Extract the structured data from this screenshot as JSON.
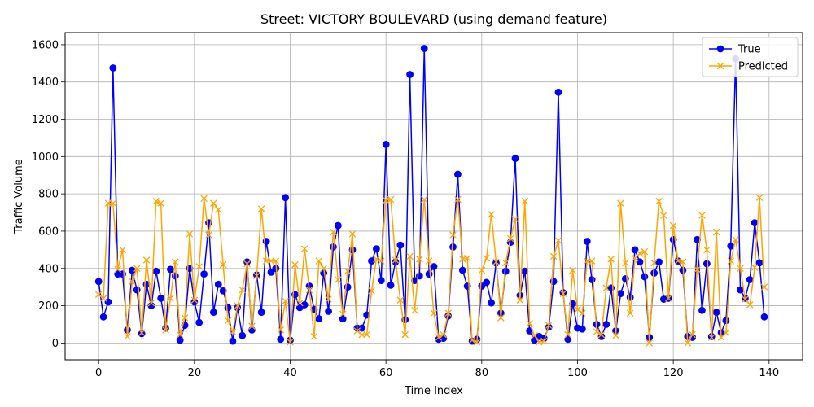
{
  "chart_data": {
    "type": "line",
    "title": "Street: VICTORY BOULEVARD (using demand feature)",
    "xlabel": "Time Index",
    "ylabel": "Traffic Volume",
    "xlim": [
      -7,
      147
    ],
    "ylim": [
      -90,
      1665
    ],
    "xticks": [
      0,
      20,
      40,
      60,
      80,
      100,
      120,
      140
    ],
    "yticks": [
      0,
      200,
      400,
      600,
      800,
      1000,
      1200,
      1400,
      1600
    ],
    "grid": true,
    "legend_position": "top-right",
    "series": [
      {
        "name": "True",
        "color": "#0000ff",
        "marker": "circle",
        "values": [
          330,
          140,
          220,
          1475,
          370,
          370,
          70,
          390,
          285,
          50,
          315,
          200,
          385,
          240,
          80,
          395,
          360,
          15,
          95,
          400,
          220,
          110,
          370,
          645,
          165,
          315,
          280,
          190,
          10,
          190,
          40,
          435,
          70,
          365,
          165,
          545,
          380,
          400,
          20,
          780,
          15,
          260,
          190,
          205,
          305,
          180,
          130,
          375,
          170,
          515,
          630,
          130,
          300,
          500,
          80,
          80,
          150,
          440,
          505,
          335,
          1065,
          310,
          435,
          525,
          125,
          1440,
          335,
          360,
          1580,
          370,
          410,
          20,
          25,
          145,
          515,
          905,
          390,
          305,
          10,
          20,
          305,
          325,
          215,
          430,
          160,
          385,
          540,
          990,
          255,
          385,
          65,
          15,
          35,
          25,
          85,
          330,
          1345,
          270,
          20,
          210,
          80,
          75,
          545,
          340,
          100,
          35,
          100,
          295,
          65,
          265,
          345,
          245,
          500,
          435,
          355,
          30,
          375,
          435,
          235,
          240,
          555,
          440,
          390,
          35,
          30,
          555,
          175,
          425,
          35,
          165,
          55,
          120,
          520,
          1525,
          285,
          240,
          340,
          645,
          430,
          140
        ]
      },
      {
        "name": "Predicted",
        "color": "#ffa500",
        "marker": "x",
        "values": [
          260,
          240,
          750,
          750,
          395,
          500,
          35,
          330,
          400,
          55,
          445,
          215,
          760,
          750,
          70,
          240,
          435,
          45,
          135,
          585,
          230,
          410,
          775,
          580,
          750,
          715,
          420,
          120,
          60,
          200,
          285,
          425,
          90,
          360,
          720,
          440,
          440,
          440,
          70,
          225,
          5,
          420,
          215,
          505,
          285,
          35,
          440,
          400,
          235,
          595,
          340,
          155,
          385,
          585,
          65,
          45,
          45,
          280,
          450,
          440,
          765,
          770,
          445,
          230,
          45,
          465,
          175,
          450,
          770,
          440,
          160,
          30,
          45,
          160,
          580,
          770,
          450,
          455,
          15,
          5,
          390,
          455,
          690,
          435,
          135,
          430,
          560,
          665,
          230,
          760,
          105,
          40,
          5,
          10,
          95,
          465,
          550,
          265,
          45,
          390,
          180,
          160,
          440,
          440,
          60,
          45,
          295,
          450,
          40,
          750,
          430,
          160,
          455,
          480,
          490,
          0,
          430,
          760,
          685,
          240,
          630,
          440,
          435,
          0,
          45,
          395,
          685,
          500,
          30,
          595,
          30,
          55,
          440,
          555,
          400,
          235,
          205,
          405,
          780,
          300
        ]
      }
    ]
  }
}
